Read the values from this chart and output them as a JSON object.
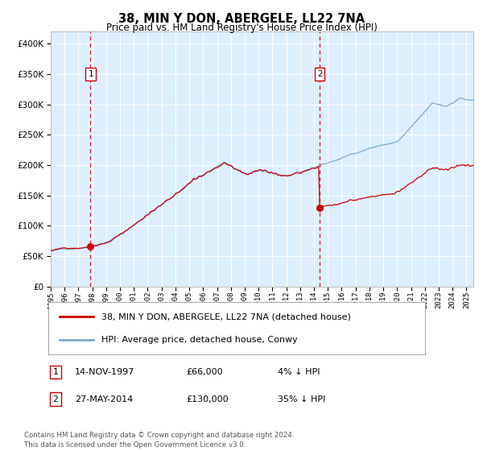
{
  "title": "38, MIN Y DON, ABERGELE, LL22 7NA",
  "subtitle": "Price paid vs. HM Land Registry's House Price Index (HPI)",
  "legend_property": "38, MIN Y DON, ABERGELE, LL22 7NA (detached house)",
  "legend_hpi": "HPI: Average price, detached house, Conwy",
  "annotation1_label": "1",
  "annotation1_date": "14-NOV-1997",
  "annotation1_price": "£66,000",
  "annotation1_pct": "4% ↓ HPI",
  "annotation2_label": "2",
  "annotation2_date": "27-MAY-2014",
  "annotation2_price": "£130,000",
  "annotation2_pct": "35% ↓ HPI",
  "footnote": "Contains HM Land Registry data © Crown copyright and database right 2024.\nThis data is licensed under the Open Government Licence v3.0.",
  "property_color": "#cc0000",
  "hpi_color": "#7aaad0",
  "background_color": "#ddeeff",
  "vline_color": "#cc0000",
  "purchase1_year": 1997.87,
  "purchase1_price": 66000,
  "purchase2_year": 2014.4,
  "purchase2_price": 130000,
  "xmin": 1995.0,
  "xmax": 2025.5,
  "ymin": 0,
  "ymax": 420000
}
